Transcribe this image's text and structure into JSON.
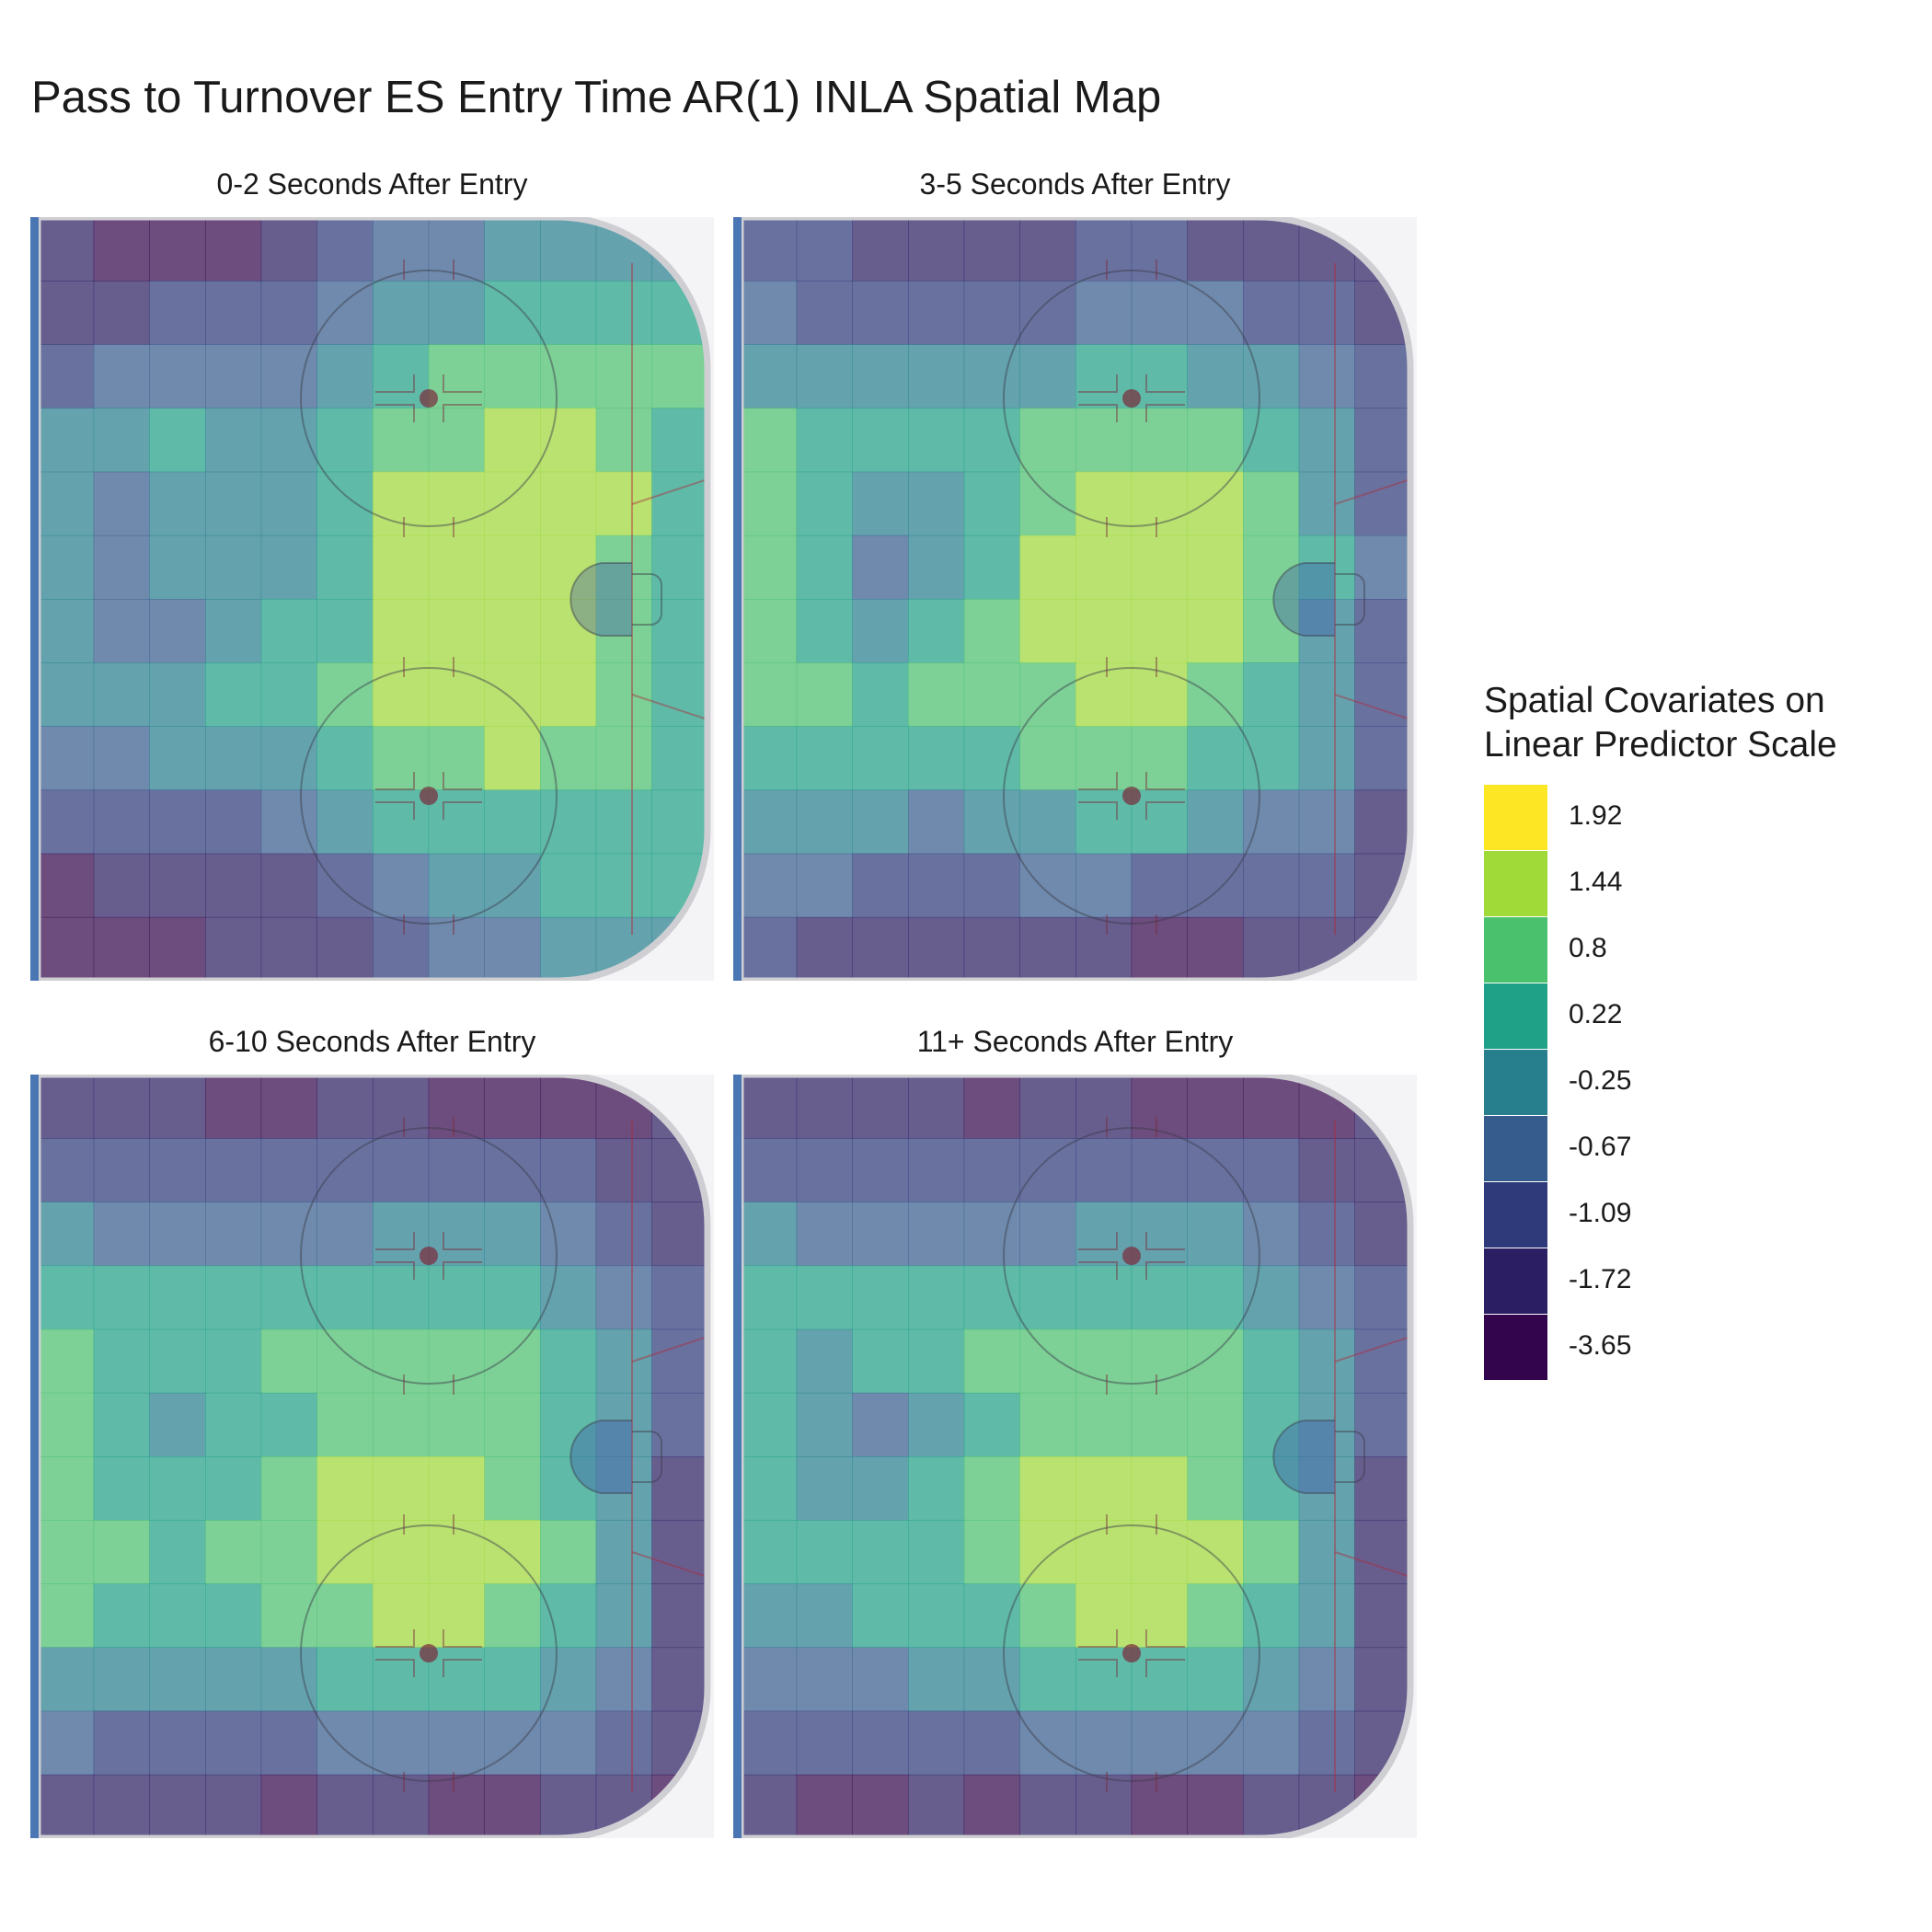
{
  "title": "Pass to Turnover ES Entry Time AR(1) INLA Spatial Map",
  "chart_data": {
    "type": "heatmap",
    "title": "Pass to Turnover ES Entry Time AR(1) INLA Spatial Map",
    "xlabel": "",
    "ylabel": "",
    "grid": false,
    "legend_position": "right",
    "legend": {
      "title": [
        "Spatial Covariates on",
        "Linear Predictor Scale"
      ],
      "levels": [
        {
          "label": "1.92",
          "color": "#FDE725"
        },
        {
          "label": "1.44",
          "color": "#A0DA39"
        },
        {
          "label": "0.8",
          "color": "#4AC16D"
        },
        {
          "label": "0.22",
          "color": "#1FA187"
        },
        {
          "label": "-0.25",
          "color": "#277F8E"
        },
        {
          "label": "-0.67",
          "color": "#365C8D"
        },
        {
          "label": "-1.09",
          "color": "#2E3A7A"
        },
        {
          "label": "-1.72",
          "color": "#2B1E63"
        },
        {
          "label": "-3.65",
          "color": "#33054C"
        }
      ]
    },
    "panels": [
      {
        "title": "0-2 Seconds After Entry",
        "grid_levels": [
          [
            7,
            8,
            8,
            8,
            7,
            6,
            5,
            5,
            4,
            4,
            4,
            4
          ],
          [
            7,
            7,
            6,
            6,
            6,
            5,
            4,
            4,
            3,
            3,
            3,
            3
          ],
          [
            6,
            5,
            5,
            5,
            5,
            4,
            3,
            2,
            2,
            2,
            2,
            2
          ],
          [
            4,
            4,
            3,
            4,
            4,
            3,
            2,
            2,
            1,
            1,
            2,
            3
          ],
          [
            4,
            5,
            4,
            4,
            4,
            3,
            1,
            1,
            1,
            1,
            1,
            3
          ],
          [
            4,
            5,
            4,
            4,
            4,
            3,
            1,
            1,
            1,
            1,
            2,
            3
          ],
          [
            4,
            5,
            5,
            4,
            3,
            3,
            1,
            1,
            1,
            1,
            2,
            3
          ],
          [
            4,
            4,
            4,
            3,
            3,
            2,
            1,
            1,
            1,
            1,
            2,
            3
          ],
          [
            5,
            5,
            4,
            4,
            4,
            3,
            2,
            2,
            1,
            2,
            2,
            3
          ],
          [
            6,
            6,
            6,
            6,
            5,
            4,
            3,
            3,
            3,
            3,
            3,
            3
          ],
          [
            8,
            7,
            7,
            7,
            7,
            6,
            5,
            4,
            4,
            3,
            3,
            3
          ],
          [
            8,
            8,
            8,
            7,
            7,
            7,
            6,
            5,
            5,
            4,
            4,
            4
          ]
        ]
      },
      {
        "title": "3-5 Seconds After Entry",
        "grid_levels": [
          [
            6,
            6,
            7,
            7,
            7,
            7,
            6,
            6,
            7,
            7,
            7,
            7
          ],
          [
            5,
            6,
            6,
            6,
            6,
            6,
            5,
            5,
            5,
            6,
            6,
            7
          ],
          [
            4,
            4,
            4,
            4,
            4,
            4,
            3,
            3,
            4,
            4,
            5,
            6
          ],
          [
            2,
            3,
            3,
            3,
            3,
            2,
            2,
            2,
            2,
            3,
            4,
            6
          ],
          [
            2,
            3,
            4,
            4,
            3,
            2,
            1,
            1,
            1,
            2,
            4,
            6
          ],
          [
            2,
            3,
            5,
            4,
            3,
            1,
            1,
            1,
            1,
            2,
            3,
            5
          ],
          [
            2,
            3,
            4,
            3,
            2,
            1,
            1,
            1,
            1,
            2,
            4,
            6
          ],
          [
            2,
            2,
            3,
            2,
            2,
            2,
            1,
            1,
            2,
            3,
            4,
            6
          ],
          [
            3,
            3,
            3,
            3,
            3,
            2,
            2,
            2,
            3,
            3,
            4,
            6
          ],
          [
            4,
            4,
            4,
            5,
            4,
            4,
            3,
            3,
            4,
            5,
            5,
            7
          ],
          [
            5,
            5,
            6,
            6,
            6,
            5,
            5,
            6,
            6,
            6,
            6,
            7
          ],
          [
            6,
            7,
            7,
            7,
            7,
            7,
            7,
            8,
            8,
            7,
            7,
            7
          ]
        ]
      },
      {
        "title": "6-10 Seconds After Entry",
        "grid_levels": [
          [
            7,
            7,
            7,
            8,
            8,
            7,
            7,
            8,
            8,
            8,
            8,
            7
          ],
          [
            6,
            6,
            6,
            6,
            6,
            6,
            6,
            6,
            6,
            6,
            7,
            7
          ],
          [
            4,
            5,
            5,
            5,
            5,
            5,
            4,
            4,
            4,
            5,
            6,
            7
          ],
          [
            3,
            3,
            3,
            3,
            3,
            3,
            3,
            3,
            3,
            4,
            5,
            6
          ],
          [
            2,
            3,
            3,
            3,
            2,
            2,
            2,
            2,
            2,
            3,
            4,
            6
          ],
          [
            2,
            3,
            4,
            3,
            3,
            2,
            2,
            2,
            2,
            3,
            4,
            6
          ],
          [
            2,
            3,
            3,
            3,
            2,
            1,
            1,
            1,
            2,
            3,
            4,
            7
          ],
          [
            2,
            2,
            3,
            2,
            2,
            1,
            1,
            1,
            1,
            2,
            4,
            7
          ],
          [
            2,
            3,
            3,
            3,
            2,
            2,
            1,
            1,
            2,
            3,
            4,
            7
          ],
          [
            4,
            4,
            4,
            4,
            4,
            3,
            3,
            3,
            3,
            4,
            5,
            7
          ],
          [
            5,
            6,
            6,
            6,
            6,
            5,
            5,
            5,
            5,
            5,
            6,
            7
          ],
          [
            7,
            7,
            7,
            7,
            8,
            7,
            7,
            8,
            8,
            7,
            7,
            8
          ]
        ]
      },
      {
        "title": "11+ Seconds After Entry",
        "grid_levels": [
          [
            7,
            7,
            7,
            7,
            8,
            7,
            7,
            8,
            8,
            8,
            8,
            7
          ],
          [
            6,
            6,
            6,
            6,
            6,
            6,
            6,
            6,
            6,
            6,
            7,
            7
          ],
          [
            4,
            5,
            5,
            5,
            5,
            5,
            4,
            4,
            4,
            5,
            6,
            7
          ],
          [
            3,
            3,
            3,
            3,
            3,
            3,
            3,
            3,
            3,
            4,
            5,
            6
          ],
          [
            3,
            4,
            3,
            3,
            2,
            2,
            2,
            2,
            2,
            3,
            4,
            6
          ],
          [
            3,
            4,
            5,
            4,
            3,
            2,
            2,
            2,
            2,
            3,
            4,
            6
          ],
          [
            3,
            4,
            4,
            3,
            2,
            1,
            1,
            1,
            2,
            3,
            4,
            7
          ],
          [
            3,
            3,
            3,
            3,
            2,
            1,
            1,
            1,
            1,
            2,
            4,
            7
          ],
          [
            4,
            4,
            3,
            3,
            3,
            2,
            1,
            1,
            2,
            3,
            4,
            7
          ],
          [
            5,
            5,
            5,
            4,
            4,
            3,
            3,
            3,
            3,
            4,
            5,
            7
          ],
          [
            6,
            6,
            6,
            6,
            6,
            5,
            5,
            5,
            5,
            5,
            6,
            7
          ],
          [
            7,
            8,
            8,
            7,
            8,
            7,
            7,
            8,
            8,
            7,
            7,
            8
          ]
        ]
      }
    ]
  }
}
